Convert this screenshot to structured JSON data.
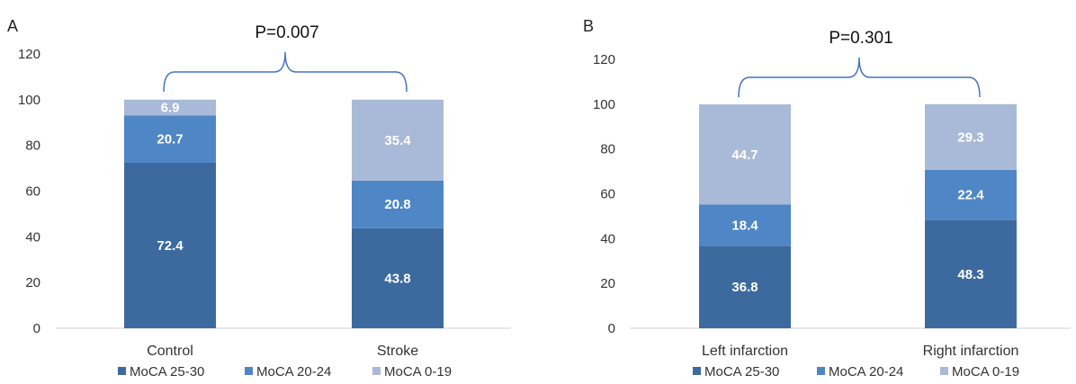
{
  "chart_data": [
    {
      "type": "bar",
      "stacked": true,
      "panel_label": "A",
      "annotation": "P=0.007",
      "categories": [
        "Control",
        "Stroke"
      ],
      "series": [
        {
          "name": "MoCA 25-30",
          "values": [
            72.4,
            43.8
          ],
          "color": "#3d6a9e"
        },
        {
          "name": "MoCA 20-24",
          "values": [
            20.7,
            20.8
          ],
          "color": "#4f86c6"
        },
        {
          "name": "MoCA 0-19",
          "values": [
            6.9,
            35.4
          ],
          "color": "#a9b9d8"
        }
      ],
      "ylim": [
        0,
        120
      ],
      "yticks": [
        0,
        20,
        40,
        60,
        80,
        100,
        120
      ],
      "legend_position": "bottom"
    },
    {
      "type": "bar",
      "stacked": true,
      "panel_label": "B",
      "annotation": "P=0.301",
      "categories": [
        "Left infarction",
        "Right infarction"
      ],
      "series": [
        {
          "name": "MoCA 25-30",
          "values": [
            36.8,
            48.3
          ],
          "color": "#3d6a9e"
        },
        {
          "name": "MoCA 20-24",
          "values": [
            18.4,
            22.4
          ],
          "color": "#4f86c6"
        },
        {
          "name": "MoCA 0-19",
          "values": [
            44.7,
            29.3
          ],
          "color": "#a9b9d8"
        }
      ],
      "ylim": [
        0,
        120
      ],
      "yticks": [
        0,
        20,
        40,
        60,
        80,
        100,
        120
      ],
      "legend_position": "bottom"
    }
  ]
}
